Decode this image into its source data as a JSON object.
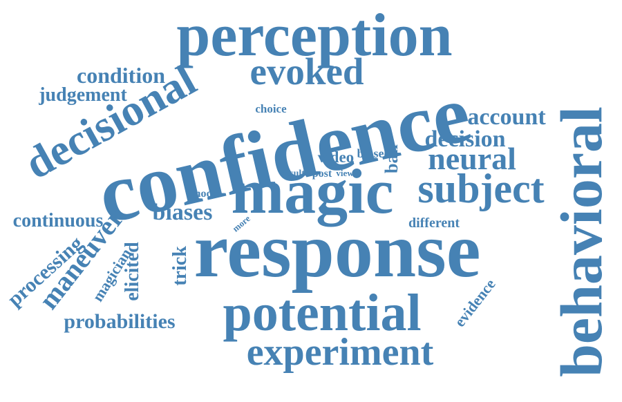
{
  "word_cloud": {
    "text_color": "#4682b4",
    "background_color": "#ffffff",
    "words": [
      {
        "text": "perception",
        "rotation": "horizontal"
      },
      {
        "text": "decisional",
        "rotation": "rotated"
      },
      {
        "text": "condition",
        "rotation": "horizontal"
      },
      {
        "text": "evoked",
        "rotation": "horizontal"
      },
      {
        "text": "judgement",
        "rotation": "horizontal"
      },
      {
        "text": "confidence",
        "rotation": "horizontal"
      },
      {
        "text": "choice",
        "rotation": "horizontal"
      },
      {
        "text": "account",
        "rotation": "horizontal"
      },
      {
        "text": "decision",
        "rotation": "horizontal"
      },
      {
        "text": "neural",
        "rotation": "horizontal"
      },
      {
        "text": "behavioral",
        "rotation": "vertical"
      },
      {
        "text": "magic",
        "rotation": "horizontal"
      },
      {
        "text": "subject",
        "rotation": "horizontal"
      },
      {
        "text": "video",
        "rotation": "horizontal"
      },
      {
        "text": "biased",
        "rotation": "horizontal"
      },
      {
        "text": "ball",
        "rotation": "vertical"
      },
      {
        "text": "result",
        "rotation": "horizontal"
      },
      {
        "text": "post",
        "rotation": "horizontal"
      },
      {
        "text": "view",
        "rotation": "horizontal"
      },
      {
        "text": "model",
        "rotation": "horizontal"
      },
      {
        "text": "biases",
        "rotation": "horizontal"
      },
      {
        "text": "continuous",
        "rotation": "horizontal"
      },
      {
        "text": "maneuver",
        "rotation": "rotated"
      },
      {
        "text": "more",
        "rotation": "rotated"
      },
      {
        "text": "different",
        "rotation": "horizontal"
      },
      {
        "text": "response",
        "rotation": "horizontal"
      },
      {
        "text": "processing",
        "rotation": "rotated"
      },
      {
        "text": "magician",
        "rotation": "rotated"
      },
      {
        "text": "elicited",
        "rotation": "vertical"
      },
      {
        "text": "trick",
        "rotation": "vertical"
      },
      {
        "text": "evidence",
        "rotation": "rotated"
      },
      {
        "text": "potential",
        "rotation": "horizontal"
      },
      {
        "text": "probabilities",
        "rotation": "horizontal"
      },
      {
        "text": "experiment",
        "rotation": "horizontal"
      }
    ]
  }
}
